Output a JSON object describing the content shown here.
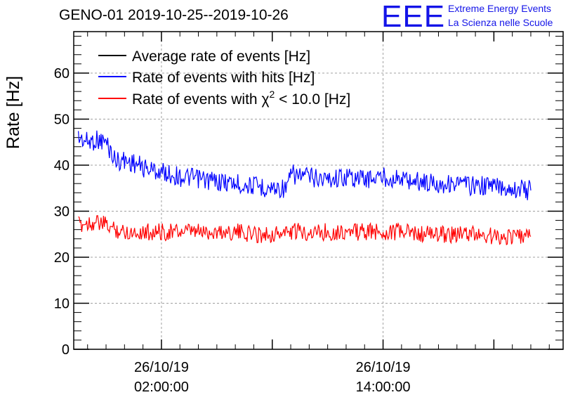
{
  "header": {
    "title": "GENO-01 2019-10-25--2019-10-26",
    "logo_text": "EEE",
    "logo_line1": "Extreme Energy Events",
    "logo_line2": "La Scienza nelle Scuole"
  },
  "colors": {
    "average": "#000000",
    "hits": "#0000ff",
    "chi2": "#ff0000",
    "logo": "#1414e8"
  },
  "chart_data": {
    "type": "line",
    "title": "GENO-01 2019-10-25--2019-10-26",
    "ylabel": "Rate [Hz]",
    "xlabel": "",
    "ylim": [
      0,
      69
    ],
    "yticks": [
      0,
      10,
      20,
      30,
      40,
      50,
      60
    ],
    "xlim": [
      "2019-10-25 21:15",
      "2019-10-26 23:45"
    ],
    "x_tick_labels": [
      {
        "date": "26/10/19",
        "time": "02:00:00",
        "x": "2019-10-26 02:00"
      },
      {
        "date": "26/10/19",
        "time": "14:00:00",
        "x": "2019-10-26 14:00"
      }
    ],
    "grid": true,
    "legend_position": "top-left",
    "legend": [
      {
        "label": "Average rate of events [Hz]",
        "color": "#000000"
      },
      {
        "label": "Rate of events with hits [Hz]",
        "color": "#0000ff"
      },
      {
        "label_prefix": "Rate of events with ",
        "label_symbol": "χ",
        "label_sup": "2",
        "label_suffix": " < 10.0 [Hz]",
        "color": "#ff0000"
      }
    ],
    "series": [
      {
        "name": "Rate of events with hits [Hz]",
        "color": "#0000ff",
        "x": [
          "2019-10-25 21:30",
          "2019-10-25 22:00",
          "2019-10-25 22:30",
          "2019-10-25 23:00",
          "2019-10-25 23:30",
          "2019-10-26 00:00",
          "2019-10-26 00:30",
          "2019-10-26 01:00",
          "2019-10-26 02:00",
          "2019-10-26 03:00",
          "2019-10-26 04:00",
          "2019-10-26 05:00",
          "2019-10-26 06:00",
          "2019-10-26 07:00",
          "2019-10-26 08:00",
          "2019-10-26 08:50",
          "2019-10-26 09:00",
          "2019-10-26 10:00",
          "2019-10-26 11:00",
          "2019-10-26 12:00",
          "2019-10-26 13:00",
          "2019-10-26 14:00",
          "2019-10-26 15:00",
          "2019-10-26 16:00",
          "2019-10-26 17:00",
          "2019-10-26 18:00",
          "2019-10-26 19:00",
          "2019-10-26 20:00",
          "2019-10-26 21:00",
          "2019-10-26 22:00"
        ],
        "values": [
          46,
          45,
          45.5,
          45,
          41,
          41,
          40.5,
          39.5,
          38.5,
          37.5,
          37,
          36.5,
          36,
          35.5,
          35,
          35,
          38,
          37.5,
          37,
          37.5,
          37,
          37.5,
          37,
          36.5,
          36,
          36,
          35.5,
          35.5,
          35,
          34.5
        ]
      },
      {
        "name": "Rate of events with χ2 < 10.0 [Hz]",
        "color": "#ff0000",
        "x": [
          "2019-10-25 21:30",
          "2019-10-25 22:00",
          "2019-10-25 22:30",
          "2019-10-25 23:00",
          "2019-10-25 23:30",
          "2019-10-26 00:00",
          "2019-10-26 01:00",
          "2019-10-26 02:00",
          "2019-10-26 03:00",
          "2019-10-26 04:00",
          "2019-10-26 05:00",
          "2019-10-26 06:00",
          "2019-10-26 07:00",
          "2019-10-26 08:00",
          "2019-10-26 09:00",
          "2019-10-26 10:00",
          "2019-10-26 11:00",
          "2019-10-26 12:00",
          "2019-10-26 13:00",
          "2019-10-26 14:00",
          "2019-10-26 15:00",
          "2019-10-26 16:00",
          "2019-10-26 17:00",
          "2019-10-26 18:00",
          "2019-10-26 19:00",
          "2019-10-26 20:00",
          "2019-10-26 21:00",
          "2019-10-26 22:00"
        ],
        "values": [
          27,
          27.5,
          27.5,
          27,
          26,
          25.5,
          25.5,
          25.5,
          25.5,
          25.5,
          25.5,
          25.5,
          25,
          25,
          25.5,
          25.5,
          25.5,
          25.5,
          25.5,
          25.5,
          25.5,
          25,
          25,
          25,
          25,
          24.5,
          24.5,
          24.5
        ]
      }
    ]
  }
}
